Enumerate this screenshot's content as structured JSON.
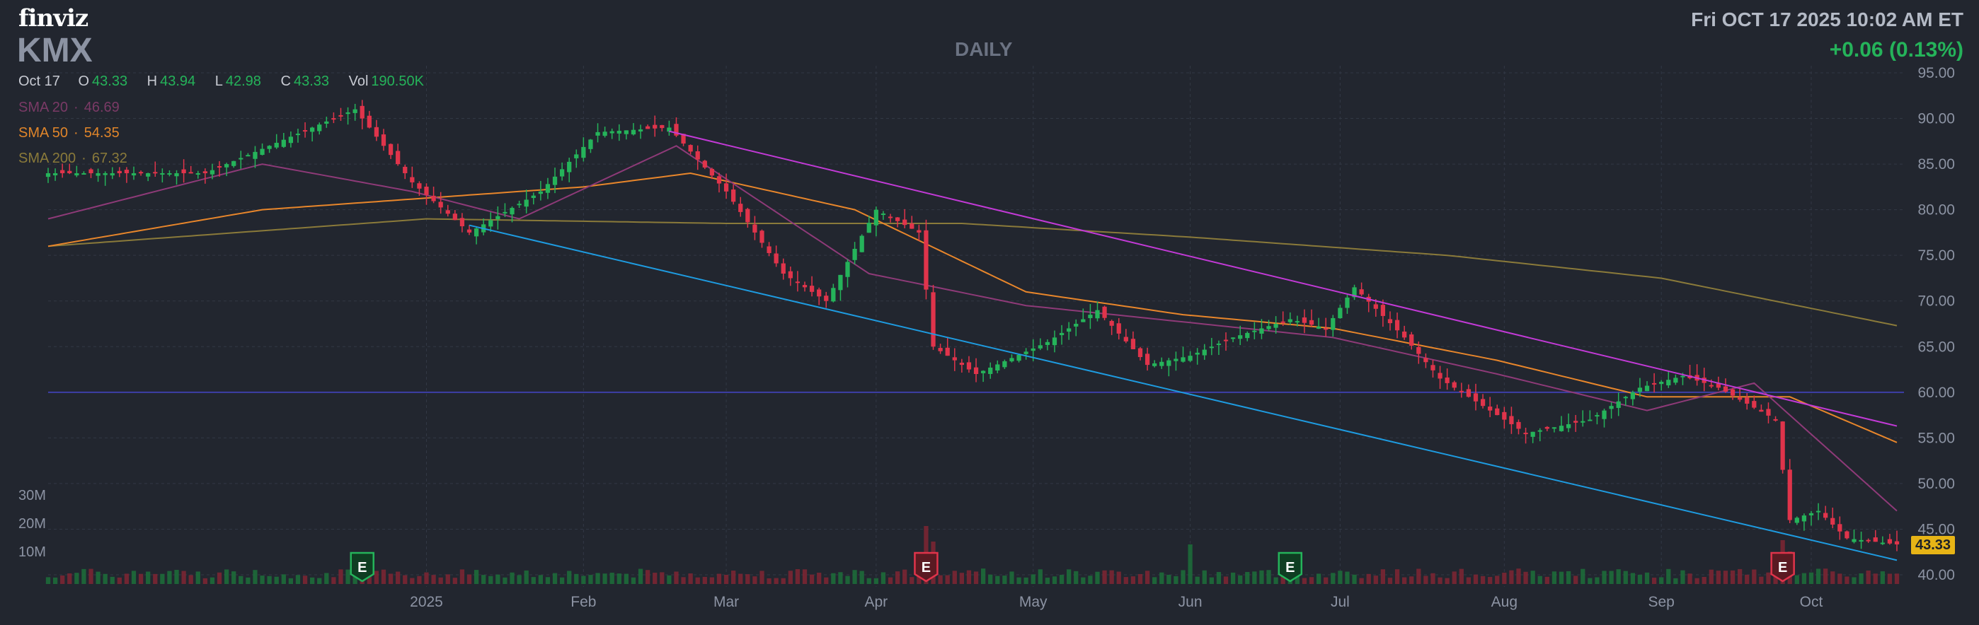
{
  "header": {
    "logo": "finviz",
    "ticker": "KMX",
    "timeframe": "DAILY",
    "datetime": "Fri OCT 17 2025 10:02 AM ET",
    "change": "+0.06 (0.13%)"
  },
  "ohlc": {
    "date": "Oct 17",
    "open_label": "O",
    "open": "43.33",
    "high_label": "H",
    "high": "43.94",
    "low_label": "L",
    "low": "42.98",
    "close_label": "C",
    "close": "43.33",
    "vol_label": "Vol",
    "volume": "190.50K"
  },
  "sma": {
    "sma20": {
      "label": "SMA 20",
      "value": "46.69",
      "color": "#8e3a78"
    },
    "sma50": {
      "label": "SMA 50",
      "value": "54.35",
      "color": "#e8862b"
    },
    "sma200": {
      "label": "SMA 200",
      "value": "67.32",
      "color": "#8a7a3a"
    }
  },
  "volume_scale": [
    "30M",
    "20M",
    "10M"
  ],
  "last_price": "43.33",
  "colors": {
    "up": "#25b35a",
    "down": "#e0344b",
    "background": "#22262f",
    "upper_trendline": "#c23ad6",
    "lower_trendline": "#1e9be0",
    "horizontal_line": "#3d3fa8"
  },
  "chart_data": {
    "type": "candlestick",
    "y_axis": {
      "ylim": [
        40,
        95
      ],
      "ticks": [
        "95.00",
        "90.00",
        "85.00",
        "80.00",
        "75.00",
        "70.00",
        "65.00",
        "60.00",
        "55.00",
        "50.00",
        "45.00",
        "40.00"
      ],
      "position": "right"
    },
    "x_axis": {
      "labels": [
        "2025",
        "Feb",
        "Mar",
        "Apr",
        "May",
        "Jun",
        "Jul",
        "Aug",
        "Sep",
        "Oct"
      ]
    },
    "grid": true,
    "horizontal_line": 60,
    "trendlines": [
      {
        "from": [
          "Feb 19",
          88.6
        ],
        "to": [
          "Oct 17",
          56.3
        ]
      },
      {
        "from": [
          "Jan 10",
          78.3
        ],
        "to": [
          "Oct 17",
          41.6
        ]
      }
    ],
    "earnings_markers": [
      {
        "date": "Dec 20",
        "result": "beat"
      },
      {
        "date": "Apr 10",
        "result": "miss"
      },
      {
        "date": "Jun 20",
        "result": "beat"
      },
      {
        "date": "Sep 25",
        "result": "miss"
      }
    ],
    "price_keypoints": [
      [
        "Oct 21",
        84
      ],
      [
        "Nov 20",
        84
      ],
      [
        "Dec 19",
        91
      ],
      [
        "Dec 31",
        83
      ],
      [
        "Jan 10",
        77.5
      ],
      [
        "Jan 24",
        82
      ],
      [
        "Feb 5",
        88.5
      ],
      [
        "Feb 19",
        89
      ],
      [
        "Mar 3",
        82
      ],
      [
        "Mar 13",
        73
      ],
      [
        "Mar 21",
        70
      ],
      [
        "Apr 1",
        80
      ],
      [
        "Apr 9",
        77.5
      ],
      [
        "Apr 11",
        65
      ],
      [
        "Apr 21",
        62
      ],
      [
        "May 5",
        65.5
      ],
      [
        "May 14",
        69
      ],
      [
        "May 23",
        63
      ],
      [
        "Jun 2",
        64
      ],
      [
        "Jun 10",
        66
      ],
      [
        "Jun 20",
        68
      ],
      [
        "Jun 27",
        67
      ],
      [
        "Jul 3",
        71.5
      ],
      [
        "Jul 14",
        66
      ],
      [
        "Jul 21",
        61.5
      ],
      [
        "Jul 31",
        57.5
      ],
      [
        "Aug 6",
        55.5
      ],
      [
        "Aug 19",
        57
      ],
      [
        "Aug 28",
        60.5
      ],
      [
        "Sep 5",
        61.8
      ],
      [
        "Sep 12",
        60.5
      ],
      [
        "Sep 24",
        57
      ],
      [
        "Sep 26",
        46
      ],
      [
        "Oct 2",
        47
      ],
      [
        "Oct 8",
        44
      ],
      [
        "Oct 17",
        43.33
      ]
    ],
    "sma_keypoints": {
      "sma20": [
        [
          "Oct 21",
          79
        ],
        [
          "Dec 2",
          85
        ],
        [
          "Dec 31",
          82
        ],
        [
          "Jan 21",
          79
        ],
        [
          "Feb 20",
          87
        ],
        [
          "Mar 31",
          73
        ],
        [
          "Apr 30",
          69.5
        ],
        [
          "Jun 30",
          66
        ],
        [
          "Jul 31",
          62
        ],
        [
          "Aug 29",
          58
        ],
        [
          "Sep 19",
          61
        ],
        [
          "Oct 17",
          47
        ]
      ],
      "sma50": [
        [
          "Oct 21",
          76
        ],
        [
          "Dec 2",
          80
        ],
        [
          "Feb 3",
          82.5
        ],
        [
          "Feb 24",
          84
        ],
        [
          "Mar 27",
          80
        ],
        [
          "Apr 30",
          71
        ],
        [
          "May 30",
          68.5
        ],
        [
          "Jun 30",
          67
        ],
        [
          "Jul 31",
          63.5
        ],
        [
          "Aug 29",
          59.5
        ],
        [
          "Sep 26",
          59.5
        ],
        [
          "Oct 17",
          54.5
        ]
      ],
      "sma200": [
        [
          "Oct 21",
          76
        ],
        [
          "Jan 2",
          79
        ],
        [
          "Mar 3",
          78.5
        ],
        [
          "Apr 17",
          78.5
        ],
        [
          "Jun 2",
          77
        ],
        [
          "Jul 22",
          75
        ],
        [
          "Sep 2",
          72.5
        ],
        [
          "Oct 17",
          67.3
        ]
      ]
    }
  }
}
